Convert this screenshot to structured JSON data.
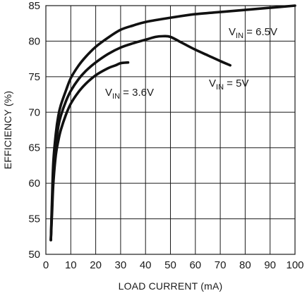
{
  "chart_data": {
    "type": "line",
    "title": "",
    "xlabel": "LOAD CURRENT (mA)",
    "ylabel": "EFFICIENCY (%)",
    "xlim": [
      0,
      100
    ],
    "ylim": [
      50,
      85
    ],
    "x_ticks": [
      "0",
      "10",
      "20",
      "30",
      "40",
      "50",
      "60",
      "70",
      "80",
      "90",
      "100"
    ],
    "y_ticks": [
      "50",
      "55",
      "60",
      "65",
      "70",
      "75",
      "80",
      "85"
    ],
    "grid": true,
    "legend": "none",
    "series": [
      {
        "label_main": "V",
        "label_sub": "IN",
        "label_rest": " = 6.5V",
        "x": [
          2,
          2.5,
          3,
          4,
          5,
          6,
          8,
          10,
          13,
          16,
          20,
          25,
          30,
          35,
          40,
          50,
          60,
          70,
          80,
          90,
          100
        ],
        "y": [
          52,
          58,
          63,
          67,
          69.5,
          71,
          73,
          74.8,
          76.5,
          77.8,
          79.2,
          80.5,
          81.6,
          82.2,
          82.7,
          83.3,
          83.8,
          84.1,
          84.4,
          84.7,
          85
        ]
      },
      {
        "label_main": "V",
        "label_sub": "IN",
        "label_rest": " = 5V",
        "x": [
          2,
          2.5,
          3,
          4,
          5,
          6,
          8,
          10,
          13,
          16,
          20,
          25,
          30,
          35,
          40,
          44,
          47,
          50,
          55,
          60,
          65,
          70,
          74
        ],
        "y": [
          52,
          57,
          61.5,
          65.5,
          68,
          69.5,
          71.5,
          73,
          74.6,
          75.8,
          77,
          78.2,
          79.1,
          79.7,
          80.2,
          80.6,
          80.7,
          80.6,
          79.7,
          78.8,
          78,
          77.2,
          76.6
        ]
      },
      {
        "label_main": "V",
        "label_sub": "IN",
        "label_rest": " = 3.6V",
        "x": [
          2,
          2.5,
          3,
          4,
          5,
          6,
          8,
          10,
          13,
          16,
          20,
          25,
          28,
          30,
          33
        ],
        "y": [
          52,
          56,
          60,
          64,
          66,
          67.5,
          69.6,
          71.2,
          72.8,
          74,
          75.2,
          76.2,
          76.6,
          76.9,
          77
        ]
      }
    ]
  }
}
